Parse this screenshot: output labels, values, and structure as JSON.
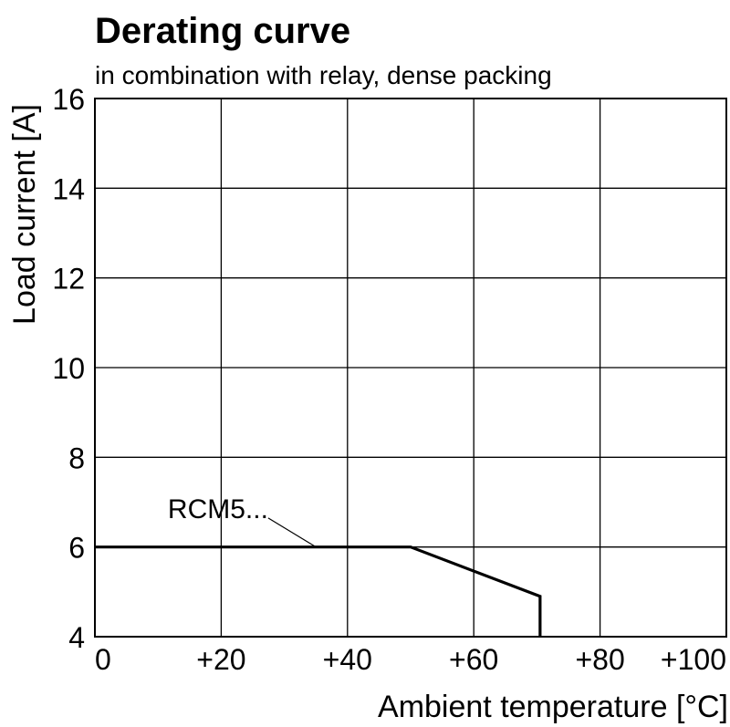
{
  "chart_data": {
    "type": "line",
    "title": "Derating curve",
    "subtitle": "in combination with relay, dense packing",
    "xlabel": "Ambient temperature [°C]",
    "ylabel": "Load current [A]",
    "xlim": [
      0,
      100
    ],
    "ylim": [
      4,
      16
    ],
    "xticks": [
      0,
      20,
      40,
      60,
      80,
      100
    ],
    "xtick_labels": [
      "0",
      "+20",
      "+40",
      "+60",
      "+80",
      "+100"
    ],
    "yticks": [
      4,
      6,
      8,
      10,
      12,
      14,
      16
    ],
    "ytick_labels": [
      "4",
      "6",
      "8",
      "10",
      "12",
      "14",
      "16"
    ],
    "grid": true,
    "series": [
      {
        "name": "RCM5...",
        "x": [
          0,
          50,
          70.5,
          70.5
        ],
        "y": [
          6,
          6,
          4.9,
          4
        ]
      }
    ],
    "annotations": [
      {
        "text": "RCM5...",
        "target_x": 35,
        "target_y": 6,
        "label_x": 26,
        "label_y": 6.85
      }
    ]
  }
}
